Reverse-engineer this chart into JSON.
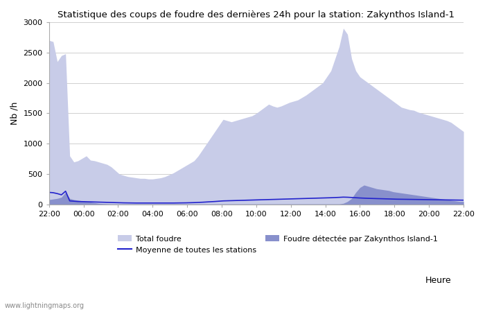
{
  "title": "Statistique des coups de foudre des dernières 24h pour la station: Zakynthos Island-1",
  "xlabel": "Heure",
  "ylabel": "Nb /h",
  "ylim": [
    0,
    3000
  ],
  "yticks": [
    0,
    500,
    1000,
    1500,
    2000,
    2500,
    3000
  ],
  "x_labels": [
    "22:00",
    "00:00",
    "02:00",
    "04:00",
    "06:00",
    "08:00",
    "10:00",
    "12:00",
    "14:00",
    "16:00",
    "18:00",
    "20:00",
    "22:00"
  ],
  "color_total": "#c8cce8",
  "color_station": "#8890cc",
  "color_line": "#2222cc",
  "watermark": "www.lightningmaps.org",
  "total_foudre": [
    2700,
    2680,
    2350,
    2450,
    2480,
    800,
    700,
    720,
    760,
    800,
    730,
    720,
    700,
    680,
    660,
    620,
    560,
    500,
    480,
    460,
    450,
    440,
    430,
    430,
    420,
    420,
    430,
    440,
    460,
    490,
    520,
    560,
    600,
    640,
    680,
    720,
    800,
    900,
    1000,
    1100,
    1200,
    1300,
    1400,
    1380,
    1360,
    1380,
    1400,
    1420,
    1440,
    1460,
    1500,
    1550,
    1600,
    1650,
    1620,
    1600,
    1620,
    1650,
    1680,
    1700,
    1720,
    1760,
    1800,
    1850,
    1900,
    1950,
    2000,
    2100,
    2200,
    2400,
    2600,
    2900,
    2800,
    2400,
    2200,
    2100,
    2050,
    2000,
    1950,
    1900,
    1850,
    1800,
    1750,
    1700,
    1650,
    1600,
    1580,
    1560,
    1550,
    1520,
    1500,
    1480,
    1460,
    1440,
    1420,
    1400,
    1380,
    1350,
    1300,
    1250,
    1200
  ],
  "station_foudre": [
    80,
    90,
    100,
    120,
    200,
    100,
    80,
    70,
    60,
    50,
    40,
    30,
    20,
    15,
    12,
    10,
    10,
    10,
    10,
    10,
    10,
    10,
    10,
    10,
    10,
    10,
    10,
    10,
    10,
    10,
    10,
    10,
    10,
    10,
    10,
    10,
    10,
    10,
    10,
    10,
    10,
    10,
    10,
    10,
    10,
    10,
    10,
    10,
    10,
    10,
    10,
    10,
    10,
    10,
    10,
    10,
    10,
    10,
    10,
    10,
    10,
    10,
    10,
    10,
    10,
    10,
    10,
    10,
    10,
    10,
    10,
    20,
    50,
    100,
    200,
    280,
    320,
    300,
    280,
    260,
    250,
    240,
    230,
    210,
    200,
    190,
    180,
    170,
    160,
    150,
    140,
    130,
    120,
    110,
    100,
    90,
    80,
    70,
    60,
    50,
    50
  ],
  "avg_line": [
    200,
    195,
    180,
    160,
    220,
    60,
    55,
    50,
    48,
    46,
    44,
    42,
    40,
    38,
    36,
    34,
    32,
    30,
    28,
    27,
    26,
    25,
    25,
    25,
    25,
    25,
    25,
    25,
    25,
    25,
    25,
    26,
    27,
    28,
    30,
    32,
    35,
    38,
    42,
    46,
    50,
    55,
    60,
    62,
    64,
    66,
    68,
    70,
    72,
    74,
    76,
    78,
    80,
    82,
    84,
    86,
    88,
    90,
    92,
    94,
    96,
    98,
    100,
    102,
    104,
    106,
    108,
    110,
    112,
    115,
    118,
    122,
    120,
    116,
    112,
    108,
    105,
    102,
    100,
    98,
    96,
    94,
    92,
    90,
    88,
    87,
    86,
    85,
    84,
    83,
    82,
    81,
    80,
    79,
    78,
    77,
    76,
    75,
    74,
    73,
    72
  ]
}
